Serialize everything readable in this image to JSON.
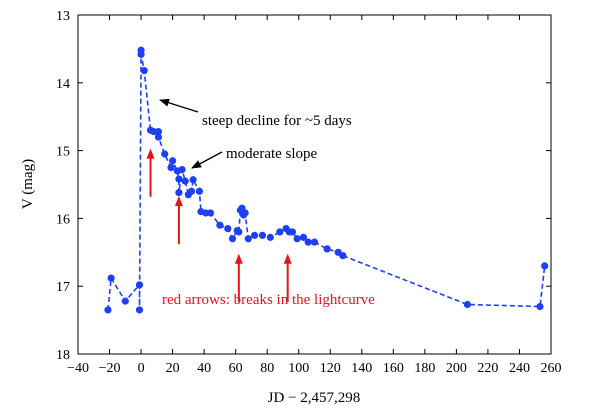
{
  "chart_data": {
    "type": "scatter",
    "xlabel": "JD − 2,457,298",
    "ylabel": "V (mag)",
    "xlim": [
      -40,
      260
    ],
    "ylim": [
      13,
      18
    ],
    "y_inverted": true,
    "xticks": [
      -40,
      -20,
      0,
      20,
      40,
      60,
      80,
      100,
      120,
      140,
      160,
      180,
      200,
      220,
      240,
      260
    ],
    "yticks": [
      13,
      14,
      15,
      16,
      17,
      18
    ],
    "grid": false,
    "series_color": "#1f3ff5",
    "arrow_color": "#e8121b",
    "points": [
      [
        -21,
        17.35
      ],
      [
        -19,
        16.88
      ],
      [
        -10,
        17.22
      ],
      [
        -1,
        16.98
      ],
      [
        -1,
        17.35
      ],
      [
        0,
        13.52
      ],
      [
        0,
        13.58
      ],
      [
        2,
        13.82
      ],
      [
        6,
        14.7
      ],
      [
        8,
        14.72
      ],
      [
        11,
        14.72
      ],
      [
        11,
        14.8
      ],
      [
        15,
        15.05
      ],
      [
        19,
        15.25
      ],
      [
        20,
        15.15
      ],
      [
        23,
        15.3
      ],
      [
        24,
        15.42
      ],
      [
        24,
        15.62
      ],
      [
        26,
        15.28
      ],
      [
        28,
        15.45
      ],
      [
        30,
        15.65
      ],
      [
        32,
        15.6
      ],
      [
        33,
        15.43
      ],
      [
        37,
        15.6
      ],
      [
        38,
        15.9
      ],
      [
        41,
        15.92
      ],
      [
        44,
        15.92
      ],
      [
        50,
        16.1
      ],
      [
        55,
        16.15
      ],
      [
        58,
        16.3
      ],
      [
        61,
        16.18
      ],
      [
        62,
        16.2
      ],
      [
        63,
        15.88
      ],
      [
        64,
        15.85
      ],
      [
        65,
        15.95
      ],
      [
        66,
        15.92
      ],
      [
        68,
        16.3
      ],
      [
        72,
        16.25
      ],
      [
        77,
        16.25
      ],
      [
        82,
        16.28
      ],
      [
        88,
        16.2
      ],
      [
        92,
        16.15
      ],
      [
        94,
        16.2
      ],
      [
        96,
        16.2
      ],
      [
        99,
        16.3
      ],
      [
        103,
        16.28
      ],
      [
        106,
        16.35
      ],
      [
        110,
        16.35
      ],
      [
        118,
        16.45
      ],
      [
        125,
        16.5
      ],
      [
        128,
        16.55
      ],
      [
        207,
        17.27
      ],
      [
        253,
        17.3
      ],
      [
        256,
        16.7
      ]
    ],
    "arrows_x": [
      6,
      24,
      62,
      93
    ]
  },
  "annotations": {
    "steep": "steep decline for ~5 days",
    "moderate": "moderate slope",
    "breaks": "red arrows: breaks in the lightcurve"
  }
}
